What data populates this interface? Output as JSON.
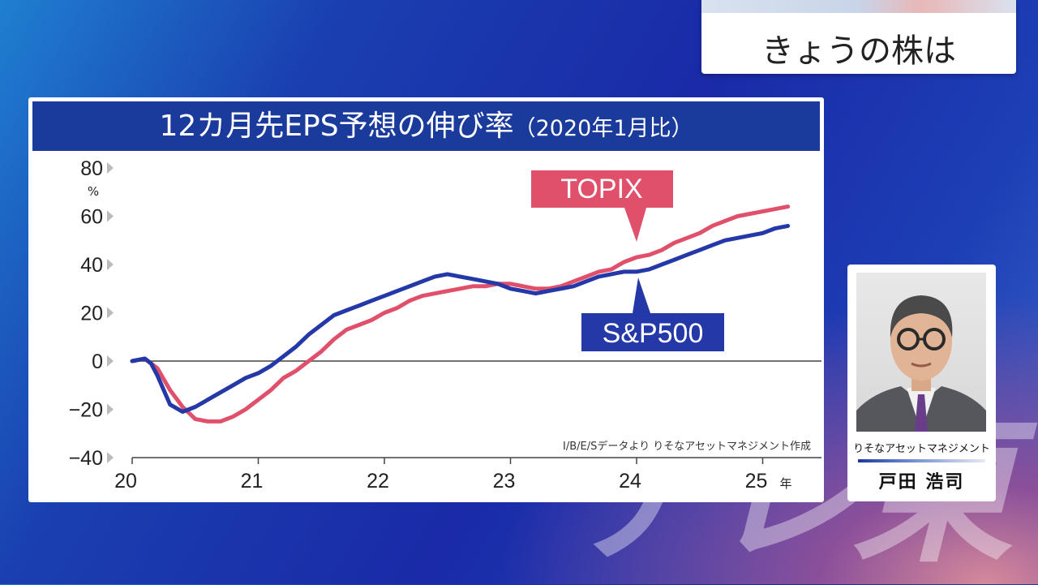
{
  "watermark": "テレ東",
  "topic": "きょうの株は",
  "chart_data": {
    "type": "line",
    "title": "12カ月先EPS予想の伸び率",
    "subtitle": "（2020年1月比）",
    "ylabel_unit": "%",
    "y_ticks": [
      80,
      60,
      40,
      20,
      0,
      -20,
      -40
    ],
    "y_tick_labels": [
      "80",
      "60",
      "40",
      "20",
      "0",
      "−20",
      "−40"
    ],
    "ylim": [
      -40,
      80
    ],
    "xlim": [
      20,
      25.3
    ],
    "x_ticks": [
      20,
      21,
      22,
      23,
      24,
      25
    ],
    "x_tick_labels": [
      "20",
      "21",
      "22",
      "23",
      "24",
      "25"
    ],
    "x_unit": "年",
    "source_note": "I/B/E/Sデータより りそなアセットマネジメント作成",
    "zero_line": true,
    "series": [
      {
        "name": "TOPIX",
        "color": "#e0506b",
        "x": [
          20.0,
          20.1,
          20.2,
          20.3,
          20.4,
          20.5,
          20.6,
          20.7,
          20.8,
          20.9,
          21.0,
          21.1,
          21.2,
          21.3,
          21.4,
          21.5,
          21.6,
          21.7,
          21.8,
          21.9,
          22.0,
          22.1,
          22.2,
          22.3,
          22.4,
          22.5,
          22.6,
          22.7,
          22.8,
          22.9,
          23.0,
          23.1,
          23.2,
          23.3,
          23.4,
          23.5,
          23.6,
          23.7,
          23.8,
          23.9,
          24.0,
          24.1,
          24.2,
          24.3,
          24.4,
          24.5,
          24.6,
          24.7,
          24.8,
          24.9,
          25.0,
          25.1,
          25.2
        ],
        "values": [
          0,
          1,
          -3,
          -12,
          -19,
          -24,
          -25,
          -25,
          -23,
          -20,
          -16,
          -12,
          -7,
          -4,
          0,
          4,
          9,
          13,
          15,
          17,
          20,
          22,
          25,
          27,
          28,
          29,
          30,
          31,
          31,
          32,
          32,
          31,
          30,
          30,
          31,
          33,
          35,
          37,
          38,
          41,
          43,
          44,
          46,
          49,
          51,
          53,
          56,
          58,
          60,
          61,
          62,
          63,
          64
        ]
      },
      {
        "name": "S&P500",
        "color": "#2438a8",
        "x": [
          20.0,
          20.1,
          20.15,
          20.2,
          20.25,
          20.3,
          20.4,
          20.5,
          20.6,
          20.7,
          20.8,
          20.9,
          21.0,
          21.1,
          21.2,
          21.3,
          21.4,
          21.5,
          21.6,
          21.7,
          21.8,
          21.9,
          22.0,
          22.1,
          22.2,
          22.3,
          22.4,
          22.5,
          22.6,
          22.7,
          22.8,
          22.9,
          23.0,
          23.1,
          23.2,
          23.3,
          23.4,
          23.5,
          23.6,
          23.7,
          23.8,
          23.9,
          24.0,
          24.1,
          24.2,
          24.3,
          24.4,
          24.5,
          24.6,
          24.7,
          24.8,
          24.9,
          25.0,
          25.1,
          25.2
        ],
        "values": [
          0,
          1,
          -1,
          -6,
          -12,
          -18,
          -21,
          -19,
          -16,
          -13,
          -10,
          -7,
          -5,
          -2,
          2,
          6,
          11,
          15,
          19,
          21,
          23,
          25,
          27,
          29,
          31,
          33,
          35,
          36,
          35,
          34,
          33,
          32,
          30,
          29,
          28,
          29,
          30,
          31,
          33,
          35,
          36,
          37,
          37,
          38,
          40,
          42,
          44,
          46,
          48,
          50,
          51,
          52,
          53,
          55,
          56
        ]
      }
    ],
    "callouts": {
      "topix": "TOPIX",
      "sp500": "S&P500"
    }
  },
  "person": {
    "company": "りそなアセットマネジメント",
    "name": "戸田 浩司"
  }
}
